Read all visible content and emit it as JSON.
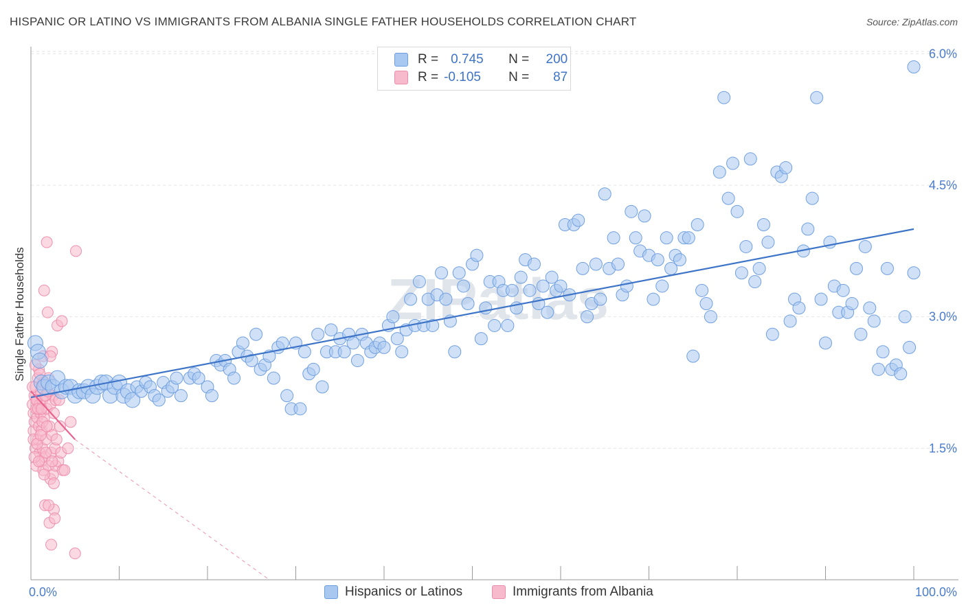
{
  "title": "HISPANIC OR LATINO VS IMMIGRANTS FROM ALBANIA SINGLE FATHER HOUSEHOLDS CORRELATION CHART",
  "source": "Source: ZipAtlas.com",
  "watermark": "ZIPatlas",
  "colors": {
    "blue": "#3d74c8",
    "blue_fill": "#a9c8f0",
    "pink": "#e8638f",
    "pink_fill": "#f7b9cc",
    "grid": "#e4e4e4",
    "axis_text": "#4a7ccc"
  },
  "legend": {
    "rows": [
      {
        "r_label": "R =",
        "r_value": "0.745",
        "n_label": "N =",
        "n_value": "200"
      },
      {
        "r_label": "R =",
        "r_value": "-0.105",
        "n_label": "N =",
        "n_value": "87"
      }
    ]
  },
  "bottom_legend": [
    {
      "label": "Hispanics or Latinos",
      "color": "blue"
    },
    {
      "label": "Immigrants from Albania",
      "color": "pink"
    }
  ],
  "chart_data": {
    "type": "scatter",
    "title": "HISPANIC OR LATINO VS IMMIGRANTS FROM ALBANIA SINGLE FATHER HOUSEHOLDS CORRELATION CHART",
    "xlabel": "",
    "ylabel": "Single Father Households",
    "xlim": [
      0,
      100
    ],
    "ylim": [
      0,
      6.3
    ],
    "x_tick_labels": [
      "0.0%",
      "100.0%"
    ],
    "y_ticks": [
      1.5,
      3.0,
      4.5,
      6.0
    ],
    "y_tick_labels": [
      "1.5%",
      "3.0%",
      "4.5%",
      "6.0%"
    ],
    "grid": true,
    "legend_position": "top-center",
    "series": [
      {
        "name": "Hispanics or Latinos",
        "color": "#3d74c8",
        "trend": {
          "x": [
            0,
            100
          ],
          "y": [
            2.08,
            4.0
          ]
        },
        "points": [
          [
            0.5,
            2.7
          ],
          [
            0.8,
            2.6
          ],
          [
            1.0,
            2.5
          ],
          [
            1.2,
            2.25
          ],
          [
            1.5,
            2.2
          ],
          [
            2,
            2.25
          ],
          [
            2.5,
            2.2
          ],
          [
            3,
            2.3
          ],
          [
            3.5,
            2.15
          ],
          [
            4,
            2.2
          ],
          [
            4.5,
            2.2
          ],
          [
            5,
            2.1
          ],
          [
            5.5,
            2.15
          ],
          [
            6,
            2.15
          ],
          [
            6.5,
            2.2
          ],
          [
            7,
            2.1
          ],
          [
            7.5,
            2.2
          ],
          [
            8,
            2.25
          ],
          [
            8.5,
            2.25
          ],
          [
            9,
            2.1
          ],
          [
            9.5,
            2.2
          ],
          [
            10,
            2.25
          ],
          [
            10.5,
            2.1
          ],
          [
            11,
            2.15
          ],
          [
            11.5,
            2.05
          ],
          [
            12,
            2.2
          ],
          [
            12.5,
            2.15
          ],
          [
            13,
            2.25
          ],
          [
            13.5,
            2.2
          ],
          [
            14,
            2.1
          ],
          [
            14.5,
            2.05
          ],
          [
            15,
            2.25
          ],
          [
            15.5,
            2.15
          ],
          [
            16,
            2.2
          ],
          [
            16.5,
            2.3
          ],
          [
            17,
            2.1
          ],
          [
            18,
            2.3
          ],
          [
            18.5,
            2.35
          ],
          [
            19,
            2.3
          ],
          [
            20,
            2.2
          ],
          [
            20.5,
            2.1
          ],
          [
            21,
            2.5
          ],
          [
            21.5,
            2.45
          ],
          [
            22,
            2.5
          ],
          [
            22.5,
            2.4
          ],
          [
            23,
            2.3
          ],
          [
            23.5,
            2.6
          ],
          [
            24,
            2.7
          ],
          [
            24.5,
            2.55
          ],
          [
            25,
            2.5
          ],
          [
            25.5,
            2.8
          ],
          [
            26,
            2.4
          ],
          [
            26.5,
            2.45
          ],
          [
            27,
            2.55
          ],
          [
            27.5,
            2.3
          ],
          [
            28,
            2.65
          ],
          [
            28.5,
            2.7
          ],
          [
            29,
            2.1
          ],
          [
            29.5,
            1.95
          ],
          [
            30,
            2.7
          ],
          [
            30.5,
            1.95
          ],
          [
            31,
            2.6
          ],
          [
            31.5,
            2.35
          ],
          [
            32,
            2.4
          ],
          [
            32.5,
            2.8
          ],
          [
            33,
            2.2
          ],
          [
            33.5,
            2.6
          ],
          [
            34,
            2.85
          ],
          [
            34.5,
            2.6
          ],
          [
            35,
            2.75
          ],
          [
            35.5,
            2.6
          ],
          [
            36,
            2.8
          ],
          [
            36.5,
            2.7
          ],
          [
            37,
            2.5
          ],
          [
            37.5,
            2.8
          ],
          [
            38,
            2.7
          ],
          [
            38.5,
            2.6
          ],
          [
            39,
            2.65
          ],
          [
            39.5,
            2.7
          ],
          [
            40,
            2.65
          ],
          [
            40.5,
            2.9
          ],
          [
            41,
            3.0
          ],
          [
            41.5,
            2.75
          ],
          [
            42,
            2.6
          ],
          [
            42.5,
            2.85
          ],
          [
            43,
            3.2
          ],
          [
            43.5,
            2.9
          ],
          [
            44,
            3.4
          ],
          [
            44.5,
            2.9
          ],
          [
            45,
            3.2
          ],
          [
            45.5,
            2.9
          ],
          [
            46,
            3.25
          ],
          [
            46.5,
            3.5
          ],
          [
            47,
            3.2
          ],
          [
            47.5,
            2.95
          ],
          [
            48,
            2.6
          ],
          [
            48.5,
            3.5
          ],
          [
            49,
            3.35
          ],
          [
            49.5,
            3.15
          ],
          [
            50,
            3.6
          ],
          [
            50.5,
            3.7
          ],
          [
            51,
            2.75
          ],
          [
            51.5,
            3.1
          ],
          [
            52,
            3.4
          ],
          [
            52.5,
            2.9
          ],
          [
            53,
            3.4
          ],
          [
            53.5,
            3.3
          ],
          [
            54,
            2.9
          ],
          [
            54.5,
            3.3
          ],
          [
            55,
            3.1
          ],
          [
            55.5,
            3.45
          ],
          [
            56,
            3.65
          ],
          [
            56.5,
            3.3
          ],
          [
            57,
            3.6
          ],
          [
            57.5,
            3.15
          ],
          [
            58,
            3.35
          ],
          [
            58.5,
            3.05
          ],
          [
            59,
            3.45
          ],
          [
            59.5,
            3.3
          ],
          [
            60,
            3.35
          ],
          [
            60.5,
            4.05
          ],
          [
            61,
            3.25
          ],
          [
            61.5,
            4.05
          ],
          [
            62,
            4.1
          ],
          [
            62.5,
            3.55
          ],
          [
            63,
            3.0
          ],
          [
            63.5,
            3.15
          ],
          [
            64,
            3.6
          ],
          [
            64.5,
            3.2
          ],
          [
            65,
            4.4
          ],
          [
            65.5,
            3.55
          ],
          [
            66,
            3.9
          ],
          [
            66.5,
            3.6
          ],
          [
            67,
            3.25
          ],
          [
            67.5,
            3.35
          ],
          [
            68,
            4.2
          ],
          [
            68.5,
            3.9
          ],
          [
            69,
            3.75
          ],
          [
            69.5,
            4.15
          ],
          [
            70,
            3.7
          ],
          [
            70.5,
            3.2
          ],
          [
            71,
            3.65
          ],
          [
            71.5,
            3.35
          ],
          [
            72,
            3.9
          ],
          [
            72.5,
            3.55
          ],
          [
            73,
            3.7
          ],
          [
            73.5,
            3.65
          ],
          [
            74,
            3.9
          ],
          [
            74.5,
            3.9
          ],
          [
            75,
            2.55
          ],
          [
            75.5,
            4.05
          ],
          [
            76,
            3.3
          ],
          [
            76.5,
            3.15
          ],
          [
            77,
            3.0
          ],
          [
            78,
            4.65
          ],
          [
            78.5,
            5.5
          ],
          [
            79,
            4.35
          ],
          [
            79.5,
            4.75
          ],
          [
            80,
            4.2
          ],
          [
            80.5,
            3.5
          ],
          [
            81,
            3.8
          ],
          [
            81.5,
            4.8
          ],
          [
            82,
            3.4
          ],
          [
            82.5,
            3.55
          ],
          [
            83,
            4.05
          ],
          [
            83.5,
            3.85
          ],
          [
            84,
            2.8
          ],
          [
            84.5,
            4.65
          ],
          [
            85,
            4.6
          ],
          [
            85.5,
            4.7
          ],
          [
            86,
            2.95
          ],
          [
            86.5,
            3.2
          ],
          [
            87,
            3.1
          ],
          [
            87.5,
            3.75
          ],
          [
            88,
            4.0
          ],
          [
            88.5,
            4.35
          ],
          [
            89,
            5.5
          ],
          [
            89.5,
            3.2
          ],
          [
            90,
            2.7
          ],
          [
            90.5,
            3.85
          ],
          [
            91,
            3.35
          ],
          [
            91.5,
            3.05
          ],
          [
            92,
            3.3
          ],
          [
            92.5,
            3.05
          ],
          [
            93,
            3.15
          ],
          [
            93.5,
            3.55
          ],
          [
            94,
            2.8
          ],
          [
            94.5,
            3.8
          ],
          [
            95,
            3.1
          ],
          [
            95.5,
            2.95
          ],
          [
            96,
            2.4
          ],
          [
            96.5,
            2.6
          ],
          [
            97,
            3.55
          ],
          [
            97.5,
            2.4
          ],
          [
            98,
            2.45
          ],
          [
            98.5,
            2.35
          ],
          [
            99,
            3.0
          ],
          [
            99.5,
            2.65
          ],
          [
            100,
            5.85
          ],
          [
            100,
            3.5
          ]
        ]
      },
      {
        "name": "Immigrants from Albania",
        "color": "#e8638f",
        "trend": {
          "x": [
            0,
            5
          ],
          "y": [
            2.15,
            1.6
          ]
        },
        "trend_extended": {
          "x": [
            5,
            27
          ],
          "y": [
            1.6,
            0.0
          ]
        },
        "points": [
          [
            0.2,
            2.0
          ],
          [
            0.3,
            1.9
          ],
          [
            0.3,
            1.7
          ],
          [
            0.4,
            2.1
          ],
          [
            0.4,
            1.8
          ],
          [
            0.5,
            2.2
          ],
          [
            0.5,
            1.5
          ],
          [
            0.6,
            1.95
          ],
          [
            0.6,
            1.3
          ],
          [
            0.7,
            2.05
          ],
          [
            0.7,
            1.85
          ],
          [
            0.8,
            2.3
          ],
          [
            0.8,
            1.6
          ],
          [
            0.9,
            1.75
          ],
          [
            0.9,
            2.4
          ],
          [
            1.0,
            1.45
          ],
          [
            1.0,
            2.0
          ],
          [
            1.1,
            1.9
          ],
          [
            1.1,
            2.15
          ],
          [
            1.2,
            1.35
          ],
          [
            1.2,
            1.7
          ],
          [
            1.3,
            2.05
          ],
          [
            1.3,
            1.5
          ],
          [
            1.4,
            1.25
          ],
          [
            1.4,
            2.25
          ],
          [
            1.5,
            1.85
          ],
          [
            1.5,
            3.3
          ],
          [
            1.6,
            1.4
          ],
          [
            1.6,
            0.85
          ],
          [
            1.7,
            2.1
          ],
          [
            1.7,
            1.6
          ],
          [
            1.8,
            1.95
          ],
          [
            1.8,
            3.85
          ],
          [
            1.9,
            3.05
          ],
          [
            2.0,
            1.3
          ],
          [
            2.0,
            2.3
          ],
          [
            2.1,
            1.75
          ],
          [
            2.1,
            0.65
          ],
          [
            2.2,
            1.15
          ],
          [
            2.2,
            2.0
          ],
          [
            2.3,
            1.45
          ],
          [
            2.3,
            0.4
          ],
          [
            2.4,
            1.65
          ],
          [
            2.4,
            2.6
          ],
          [
            2.5,
            1.2
          ],
          [
            2.5,
            2.1
          ],
          [
            2.6,
            0.8
          ],
          [
            2.6,
            1.9
          ],
          [
            2.7,
            1.5
          ],
          [
            2.7,
            0.7
          ],
          [
            2.8,
            2.05
          ],
          [
            2.8,
            1.3
          ],
          [
            2.9,
            1.6
          ],
          [
            3.0,
            2.9
          ],
          [
            3.1,
            1.35
          ],
          [
            3.2,
            2.05
          ],
          [
            3.3,
            1.75
          ],
          [
            3.4,
            1.45
          ],
          [
            3.5,
            2.95
          ],
          [
            3.6,
            1.25
          ],
          [
            0.2,
            2.2
          ],
          [
            0.3,
            1.6
          ],
          [
            0.4,
            1.4
          ],
          [
            0.5,
            2.45
          ],
          [
            0.6,
            2.05
          ],
          [
            0.7,
            1.55
          ],
          [
            0.8,
            1.95
          ],
          [
            0.9,
            1.35
          ],
          [
            1.0,
            2.35
          ],
          [
            1.1,
            1.65
          ],
          [
            1.2,
            1.95
          ],
          [
            1.3,
            1.8
          ],
          [
            1.4,
            2.55
          ],
          [
            1.5,
            1.2
          ],
          [
            1.6,
            2.1
          ],
          [
            1.7,
            1.45
          ],
          [
            1.8,
            1.75
          ],
          [
            1.9,
            2.15
          ],
          [
            2.0,
            0.85
          ],
          [
            2.2,
            2.55
          ],
          [
            2.4,
            1.35
          ],
          [
            2.6,
            1.1
          ],
          [
            3.8,
            1.25
          ],
          [
            4.2,
            1.5
          ],
          [
            4.5,
            1.8
          ],
          [
            5.0,
            0.3
          ],
          [
            5.1,
            3.75
          ]
        ]
      }
    ]
  }
}
